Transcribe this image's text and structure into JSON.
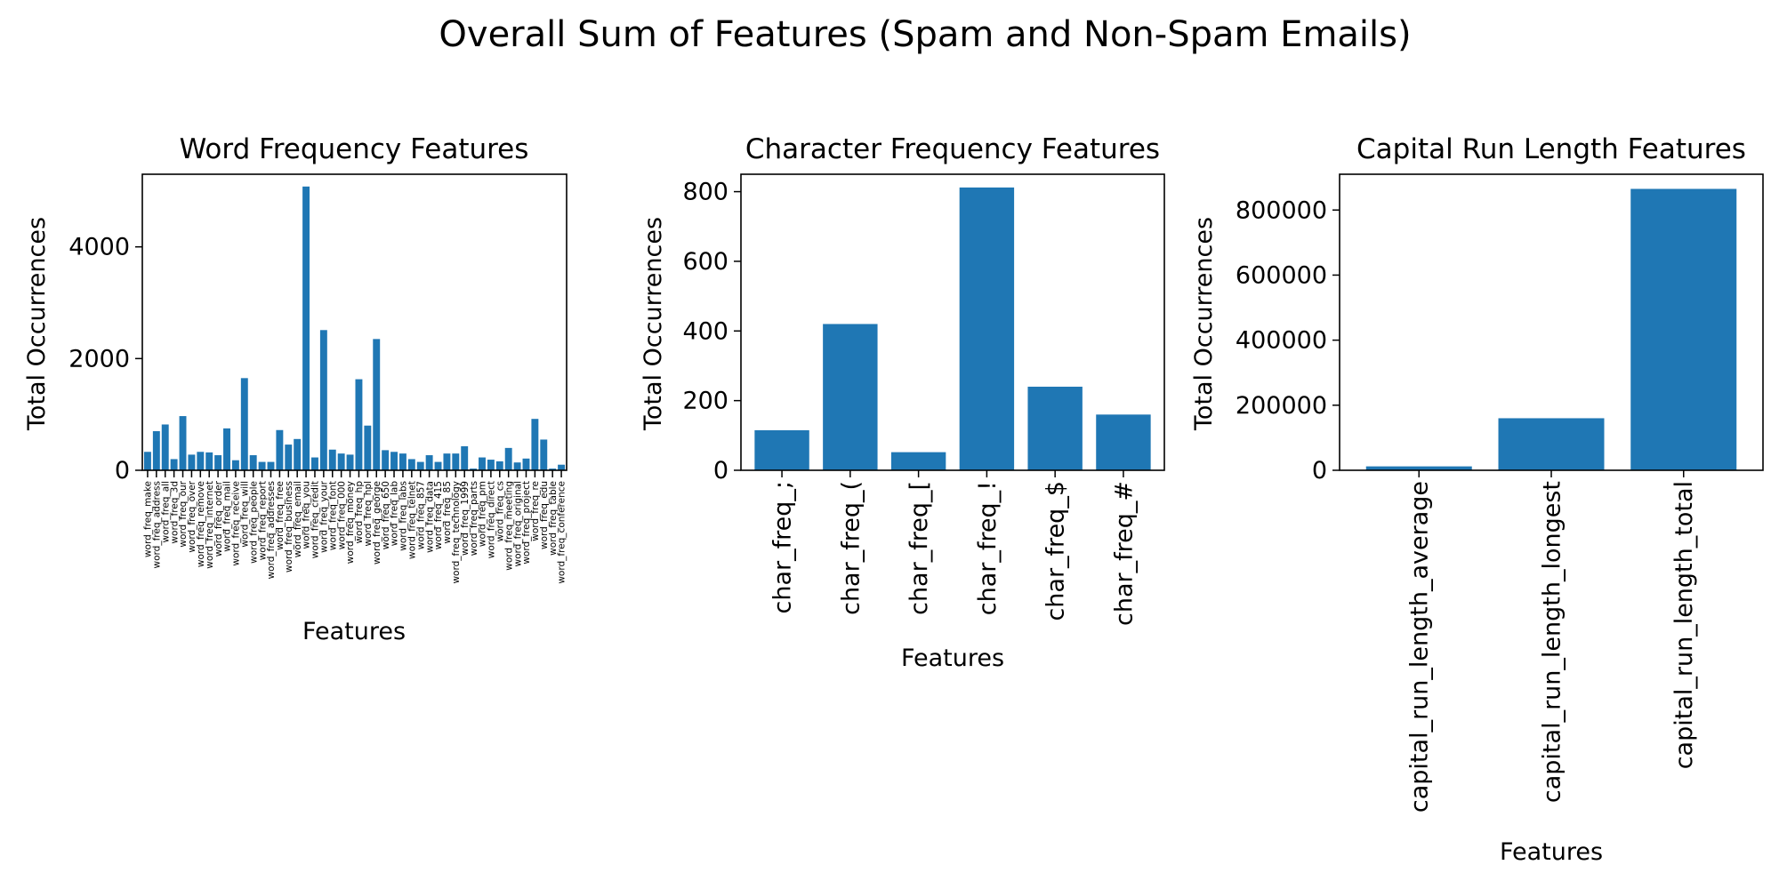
{
  "figure": {
    "title": "Overall Sum of Features (Spam and Non-Spam Emails)",
    "bar_color": "#1f77b4"
  },
  "chart_data": [
    {
      "type": "bar",
      "title": "Word Frequency Features",
      "xlabel": "Features",
      "ylabel": "Total Occurrences",
      "ylim": [
        0,
        5300
      ],
      "yticks": [
        0,
        2000,
        4000
      ],
      "categories": [
        "word_freq_make",
        "word_freq_address",
        "word_freq_all",
        "word_freq_3d",
        "word_freq_our",
        "word_freq_over",
        "word_freq_remove",
        "word_freq_internet",
        "word_freq_order",
        "word_freq_mail",
        "word_freq_receive",
        "word_freq_will",
        "word_freq_people",
        "word_freq_report",
        "word_freq_addresses",
        "word_freq_free",
        "word_freq_business",
        "word_freq_email",
        "word_freq_you",
        "word_freq_credit",
        "word_freq_your",
        "word_freq_font",
        "word_freq_000",
        "word_freq_money",
        "word_freq_hp",
        "word_freq_hpl",
        "word_freq_george",
        "word_freq_650",
        "word_freq_lab",
        "word_freq_labs",
        "word_freq_telnet",
        "word_freq_857",
        "word_freq_data",
        "word_freq_415",
        "word_freq_85",
        "word_freq_technology",
        "word_freq_1999",
        "word_freq_parts",
        "word_freq_pm",
        "word_freq_direct",
        "word_freq_cs",
        "word_freq_meeting",
        "word_freq_original",
        "word_freq_project",
        "word_freq_re",
        "word_freq_edu",
        "word_freq_table",
        "word_freq_conference"
      ],
      "values": [
        330,
        700,
        820,
        200,
        970,
        280,
        330,
        320,
        270,
        750,
        180,
        1650,
        270,
        150,
        150,
        720,
        460,
        560,
        5080,
        230,
        2510,
        370,
        300,
        280,
        1630,
        800,
        2350,
        360,
        330,
        300,
        200,
        150,
        270,
        150,
        300,
        300,
        430,
        30,
        230,
        190,
        160,
        400,
        140,
        210,
        920,
        550,
        30,
        100
      ]
    },
    {
      "type": "bar",
      "title": "Character Frequency Features",
      "xlabel": "Features",
      "ylabel": "Total Occurrences",
      "ylim": [
        0,
        850
      ],
      "yticks": [
        0,
        200,
        400,
        600,
        800
      ],
      "categories": [
        "char_freq_;",
        "char_freq_(",
        "char_freq_[",
        "char_freq_!",
        "char_freq_$",
        "char_freq_#"
      ],
      "values": [
        115,
        420,
        52,
        812,
        240,
        160
      ]
    },
    {
      "type": "bar",
      "title": "Capital Run Length Features",
      "xlabel": "Features",
      "ylabel": "Total Occurrences",
      "ylim": [
        0,
        910000
      ],
      "yticks": [
        0,
        200000,
        400000,
        600000,
        800000
      ],
      "categories": [
        "capital_run_length_average",
        "capital_run_length_longest",
        "capital_run_length_total"
      ],
      "values": [
        12000,
        160000,
        865000
      ]
    }
  ]
}
